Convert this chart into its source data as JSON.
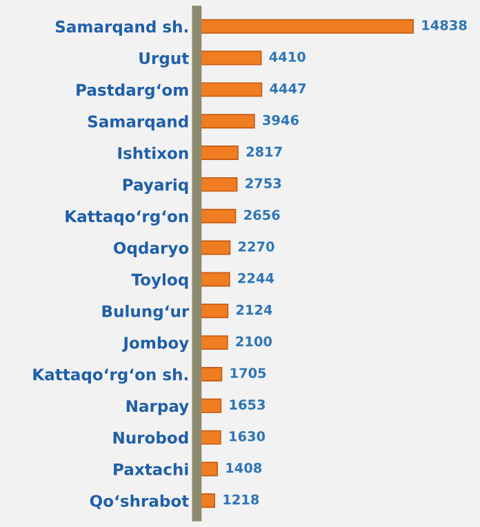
{
  "chart_data": {
    "type": "bar",
    "orientation": "horizontal",
    "categories": [
      "Samarqand sh.",
      "Urgut",
      "Pastdarg‘om",
      "Samarqand",
      "Ishtixon",
      "Payariq",
      "Kattaqo‘rg‘on",
      "Oqdaryo",
      "Toyloq",
      "Bulung‘ur",
      "Jomboy",
      "Kattaqo‘rg‘on sh.",
      "Narpay",
      "Nurobod",
      "Paxtachi",
      "Qo‘shrabot"
    ],
    "values": [
      14838,
      4410,
      4447,
      3946,
      2817,
      2753,
      2656,
      2270,
      2244,
      2124,
      2100,
      1705,
      1653,
      1630,
      1408,
      1218
    ],
    "color": "#f07d22",
    "data_labels": true,
    "grid": false,
    "legend": false,
    "tick_labels": "y"
  }
}
